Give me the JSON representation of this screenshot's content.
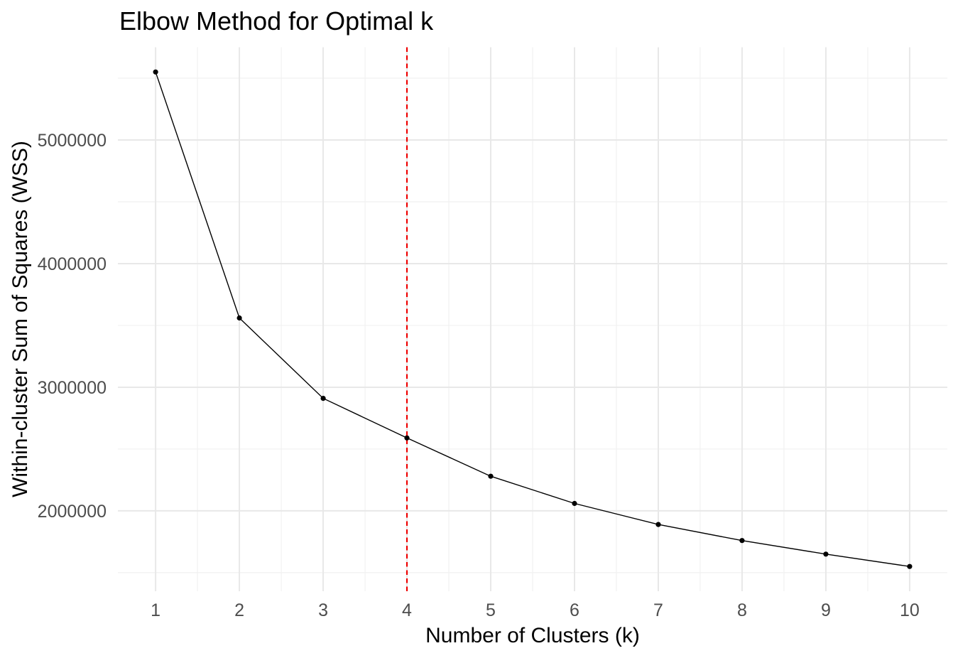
{
  "chart_data": {
    "type": "line",
    "title": "Elbow Method for Optimal k",
    "xlabel": "Number of Clusters (k)",
    "ylabel": "Within-cluster Sum of Squares (WSS)",
    "x": [
      1,
      2,
      3,
      4,
      5,
      6,
      7,
      8,
      9,
      10
    ],
    "series": [
      {
        "name": "WSS",
        "values": [
          5550000,
          3560000,
          2910000,
          2590000,
          2280000,
          2060000,
          1890000,
          1760000,
          1650000,
          1550000
        ]
      }
    ],
    "x_tick_labels": [
      "1",
      "2",
      "3",
      "4",
      "5",
      "6",
      "7",
      "8",
      "9",
      "10"
    ],
    "x_tick_values": [
      1,
      2,
      3,
      4,
      5,
      6,
      7,
      8,
      9,
      10
    ],
    "x_minor_tick_values": [
      1.5,
      2.5,
      3.5,
      4.5,
      5.5,
      6.5,
      7.5,
      8.5,
      9.5
    ],
    "y_tick_labels": [
      "2000000",
      "3000000",
      "4000000",
      "5000000"
    ],
    "y_tick_values": [
      2000000,
      3000000,
      4000000,
      5000000
    ],
    "y_minor_tick_values": [
      1500000,
      2500000,
      3500000,
      4500000,
      5500000
    ],
    "xlim": [
      0.55,
      10.45
    ],
    "ylim": [
      1350000,
      5750000
    ],
    "grid": true,
    "legend": "none",
    "marker": "point",
    "annotations": {
      "elbow_vline": {
        "x": 4,
        "color": "#EE0000",
        "linetype": "dashed"
      }
    },
    "colors": {
      "line": "#000000",
      "point": "#000000",
      "grid_major": "#E8E8E8",
      "grid_minor": "#F1F1F1",
      "tick_label": "#4D4D4D",
      "title_text": "#000000",
      "background": "#FFFFFF"
    }
  }
}
